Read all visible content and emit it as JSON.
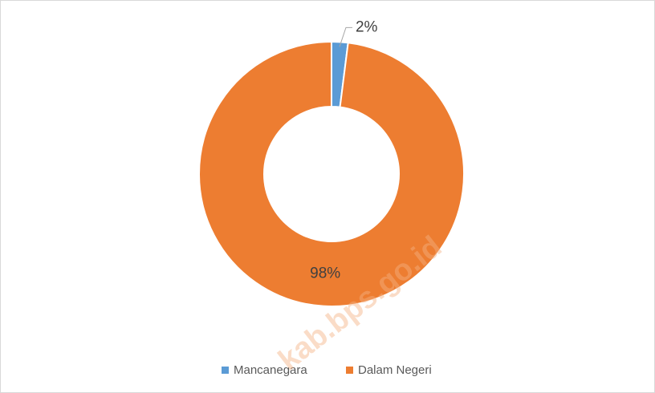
{
  "chart_data": {
    "type": "pie",
    "categories": [
      "Mancanegara",
      "Dalam Negeri"
    ],
    "values": [
      2,
      98
    ],
    "value_labels": [
      "2%",
      "98%"
    ],
    "colors": [
      "#5b9bd5",
      "#ed7d31"
    ],
    "hole": true,
    "legend": "bottom",
    "watermark": "kab.bps.go.id"
  }
}
